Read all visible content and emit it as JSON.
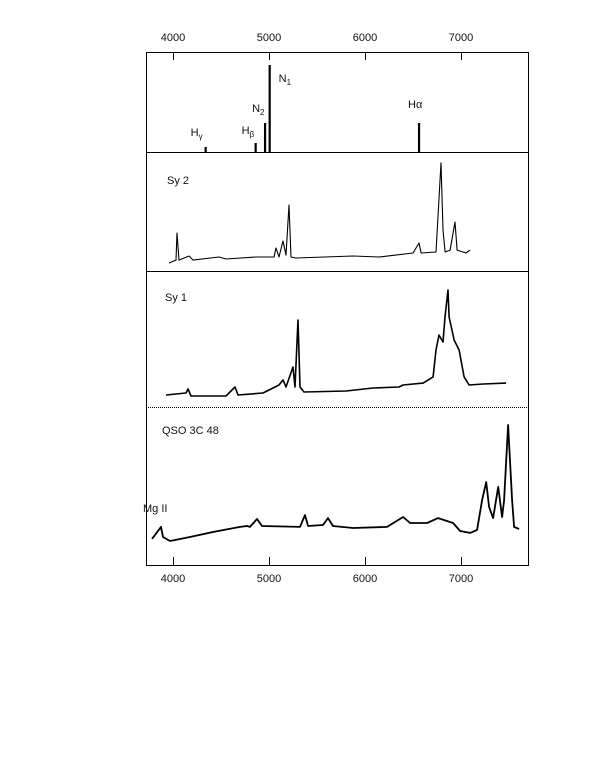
{
  "chart_data": {
    "type": "line",
    "title": "",
    "xlabel": "",
    "ylabel": "",
    "xlim": [
      3720,
      7680
    ],
    "x_ticks": [
      "4000",
      "5000",
      "6000",
      "7000"
    ],
    "x_tick_values": [
      4000,
      5000,
      6000,
      7000
    ],
    "grid": false,
    "line_color": "#000000",
    "panels": [
      {
        "kind": "lines",
        "lines": [
          {
            "main": "H",
            "sub": "γ",
            "x": 4340,
            "height": 5
          },
          {
            "main": "H",
            "sub": "β",
            "x": 4861,
            "height": 9
          },
          {
            "main": "N",
            "sub": "2",
            "x": 4959,
            "height": 29
          },
          {
            "main": "N",
            "sub": "1",
            "x": 5007,
            "height": 87
          },
          {
            "main": "Hα",
            "sub": "",
            "x": 6563,
            "height": 29
          }
        ]
      },
      {
        "kind": "spectrum",
        "label": "Sy 2",
        "points": [
          [
            3958,
            6.7
          ],
          [
            4031,
            9.2
          ],
          [
            4042,
            31.9
          ],
          [
            4063,
            9.2
          ],
          [
            4167,
            12.6
          ],
          [
            4208,
            9.2
          ],
          [
            4479,
            11.8
          ],
          [
            4552,
            10.1
          ],
          [
            4865,
            11.8
          ],
          [
            5052,
            11.8
          ],
          [
            5073,
            19.3
          ],
          [
            5104,
            11.8
          ],
          [
            5146,
            25.2
          ],
          [
            5177,
            13.4
          ],
          [
            5208,
            55.5
          ],
          [
            5229,
            11.8
          ],
          [
            5281,
            10.9
          ],
          [
            5875,
            12.6
          ],
          [
            6146,
            11.8
          ],
          [
            6500,
            15.1
          ],
          [
            6563,
            23.5
          ],
          [
            6584,
            15.1
          ],
          [
            6740,
            16.0
          ],
          [
            6792,
            90.8
          ],
          [
            6813,
            34.5
          ],
          [
            6834,
            16.0
          ],
          [
            6886,
            17.6
          ],
          [
            6938,
            41.2
          ],
          [
            6959,
            17.6
          ],
          [
            7053,
            15.1
          ],
          [
            7094,
            17.6
          ]
        ]
      },
      {
        "kind": "spectrum",
        "label": "Sy 1",
        "points": [
          [
            3927,
            8.8
          ],
          [
            4135,
            10.3
          ],
          [
            4156,
            13.2
          ],
          [
            4188,
            8.1
          ],
          [
            4552,
            8.1
          ],
          [
            4646,
            14.7
          ],
          [
            4677,
            8.8
          ],
          [
            4938,
            10.3
          ],
          [
            5104,
            16.2
          ],
          [
            5146,
            19.9
          ],
          [
            5177,
            14.7
          ],
          [
            5250,
            29.4
          ],
          [
            5271,
            14.7
          ],
          [
            5302,
            64.0
          ],
          [
            5323,
            14.7
          ],
          [
            5365,
            11.0
          ],
          [
            5803,
            11.8
          ],
          [
            6084,
            14.0
          ],
          [
            6355,
            14.7
          ],
          [
            6396,
            16.2
          ],
          [
            6605,
            17.6
          ],
          [
            6709,
            22.1
          ],
          [
            6740,
            41.9
          ],
          [
            6771,
            52.9
          ],
          [
            6813,
            47.8
          ],
          [
            6834,
            66.9
          ],
          [
            6865,
            86.0
          ],
          [
            6876,
            66.2
          ],
          [
            6928,
            49.3
          ],
          [
            6980,
            41.9
          ],
          [
            7032,
            22.1
          ],
          [
            7084,
            16.2
          ],
          [
            7230,
            16.9
          ],
          [
            7470,
            17.6
          ]
        ]
      },
      {
        "kind": "spectrum",
        "label": "QSO 3C 48",
        "annotation": "Mg II",
        "points": [
          [
            3781,
            16.5
          ],
          [
            3875,
            24.1
          ],
          [
            3896,
            17.7
          ],
          [
            3969,
            15.2
          ],
          [
            4177,
            17.7
          ],
          [
            4417,
            20.9
          ],
          [
            4698,
            24.1
          ],
          [
            4771,
            24.7
          ],
          [
            4802,
            24.1
          ],
          [
            4875,
            29.1
          ],
          [
            4927,
            24.7
          ],
          [
            5323,
            24.1
          ],
          [
            5375,
            31.6
          ],
          [
            5407,
            24.7
          ],
          [
            5563,
            25.3
          ],
          [
            5615,
            29.7
          ],
          [
            5667,
            24.7
          ],
          [
            5876,
            23.4
          ],
          [
            6230,
            24.1
          ],
          [
            6397,
            30.4
          ],
          [
            6470,
            26.6
          ],
          [
            6647,
            26.6
          ],
          [
            6761,
            29.7
          ],
          [
            6918,
            26.6
          ],
          [
            6991,
            21.5
          ],
          [
            7095,
            20.3
          ],
          [
            7168,
            22.2
          ],
          [
            7220,
            41.1
          ],
          [
            7262,
            52.5
          ],
          [
            7293,
            36.7
          ],
          [
            7334,
            29.7
          ],
          [
            7387,
            49.4
          ],
          [
            7428,
            30.4
          ],
          [
            7449,
            41.1
          ],
          [
            7491,
            88.6
          ],
          [
            7532,
            41.1
          ],
          [
            7553,
            24.1
          ],
          [
            7605,
            22.8
          ]
        ]
      }
    ]
  }
}
